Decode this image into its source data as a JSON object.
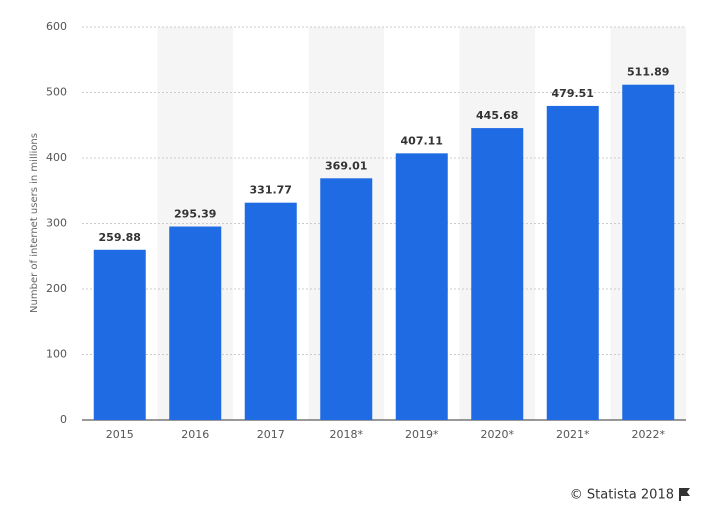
{
  "chart_data": {
    "type": "bar",
    "y_label": "Number of internet users in millions",
    "categories": [
      "2015",
      "2016",
      "2017",
      "2018*",
      "2019*",
      "2020*",
      "2021*",
      "2022*"
    ],
    "values": [
      259.88,
      295.39,
      331.77,
      369.01,
      407.11,
      445.68,
      479.51,
      511.89
    ],
    "color": "#1f6be3",
    "ylim": [
      0,
      600
    ],
    "yticks": [
      0,
      100,
      200,
      300,
      400,
      500,
      600
    ],
    "grid": true,
    "source": "© Statista 2018"
  }
}
